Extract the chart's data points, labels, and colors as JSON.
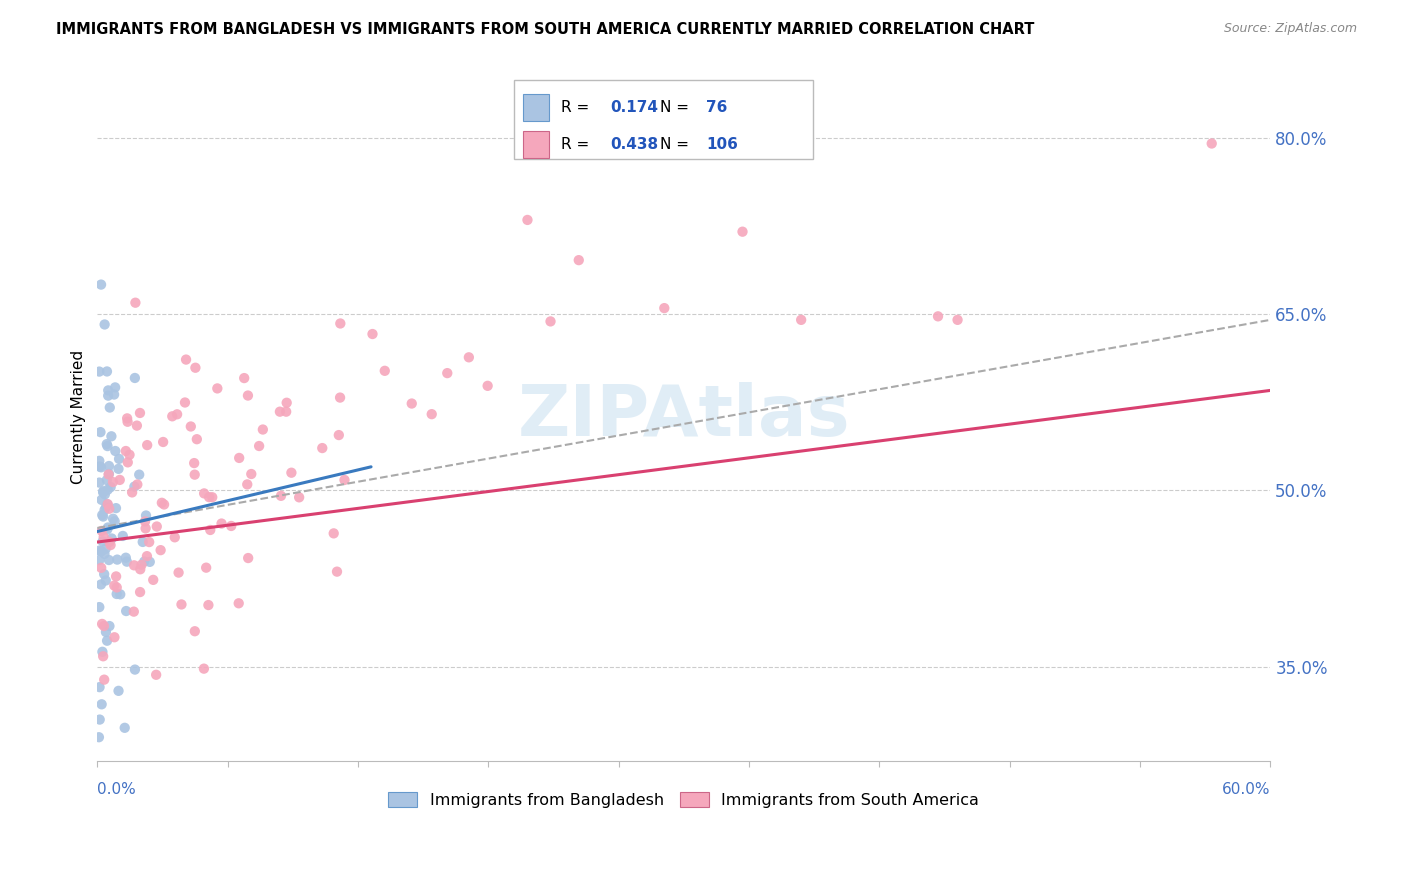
{
  "title": "IMMIGRANTS FROM BANGLADESH VS IMMIGRANTS FROM SOUTH AMERICA CURRENTLY MARRIED CORRELATION CHART",
  "source": "Source: ZipAtlas.com",
  "ylabel": "Currently Married",
  "right_yticks": [
    0.35,
    0.5,
    0.65,
    0.8
  ],
  "right_yticklabels": [
    "35.0%",
    "50.0%",
    "65.0%",
    "80.0%"
  ],
  "xlim": [
    0.0,
    0.6
  ],
  "ylim": [
    0.27,
    0.855
  ],
  "watermark": "ZIPAtlas",
  "bd_color": "#aac4e2",
  "bd_line_color": "#3a7abf",
  "sa_color": "#f5a7bc",
  "sa_line_color": "#d94070",
  "dash_color": "#aaaaaa",
  "legend_R1": "0.174",
  "legend_N1": "76",
  "legend_R2": "0.438",
  "legend_N2": "106",
  "legend_label1": "Immigrants from Bangladesh",
  "legend_label2": "Immigrants from South America",
  "blue_line": {
    "x0": 0.0,
    "y0": 0.465,
    "x1": 0.14,
    "y1": 0.52
  },
  "pink_line": {
    "x0": 0.0,
    "y0": 0.456,
    "x1": 0.6,
    "y1": 0.585
  },
  "dash_line": {
    "x0": 0.0,
    "y0": 0.468,
    "x1": 0.6,
    "y1": 0.645
  }
}
